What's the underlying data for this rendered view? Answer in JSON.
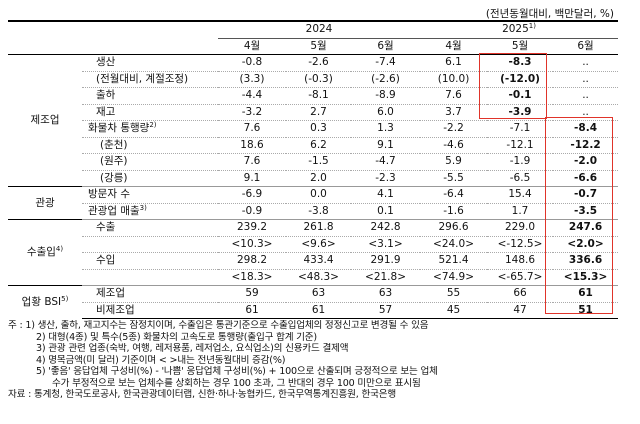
{
  "unit": "(전년동월대비, 백만달러, %)",
  "years": {
    "y2024": "2024",
    "y2025": "2025",
    "y2025_sup": "1)"
  },
  "months": [
    "4월",
    "5월",
    "6월",
    "4월",
    "5월",
    "6월"
  ],
  "rows": {
    "r1": {
      "label": "생산",
      "v": [
        "-0.8",
        "-2.6",
        "-7.4",
        "6.1",
        "-8.3",
        ".."
      ]
    },
    "r2": {
      "label": "(전월대비, 계절조정)",
      "v": [
        "(3.3)",
        "(-0.3)",
        "(-2.6)",
        "(10.0)",
        "(-12.0)",
        ".."
      ]
    },
    "r3": {
      "label": "출하",
      "v": [
        "-4.4",
        "-8.1",
        "-8.9",
        "7.6",
        "-0.1",
        ".."
      ]
    },
    "r4": {
      "label": "재고",
      "v": [
        "-3.2",
        "2.7",
        "6.0",
        "3.7",
        "-3.9",
        ".."
      ]
    },
    "r5": {
      "label": "화물차 통행량",
      "sup": "2)",
      "v": [
        "7.6",
        "0.3",
        "1.3",
        "-2.2",
        "-7.1",
        "-8.4"
      ]
    },
    "r6": {
      "label": "(춘천)",
      "v": [
        "18.6",
        "6.2",
        "9.1",
        "-4.6",
        "-12.1",
        "-12.2"
      ]
    },
    "r7": {
      "label": "(원주)",
      "v": [
        "7.6",
        "-1.5",
        "-4.7",
        "5.9",
        "-1.9",
        "-2.0"
      ]
    },
    "r8": {
      "label": "(강릉)",
      "v": [
        "9.1",
        "2.0",
        "-2.3",
        "-5.5",
        "-6.5",
        "-6.6"
      ]
    },
    "r9": {
      "label": "방문자 수",
      "v": [
        "-6.9",
        "0.0",
        "4.1",
        "-6.4",
        "15.4",
        "-0.7"
      ]
    },
    "r10": {
      "label": "관광업 매출",
      "sup": "3)",
      "v": [
        "-0.9",
        "-3.8",
        "0.1",
        "-1.6",
        "1.7",
        "-3.5"
      ]
    },
    "r11": {
      "label": "수출",
      "v": [
        "239.2",
        "261.8",
        "242.8",
        "296.6",
        "229.0",
        "247.6"
      ]
    },
    "r12": {
      "label": "",
      "v": [
        "<10.3>",
        "<9.6>",
        "<3.1>",
        "<24.0>",
        "<-12.5>",
        "<2.0>"
      ]
    },
    "r13": {
      "label": "수입",
      "v": [
        "298.2",
        "433.4",
        "291.9",
        "521.4",
        "148.6",
        "336.6"
      ]
    },
    "r14": {
      "label": "",
      "v": [
        "<18.3>",
        "<48.3>",
        "<21.8>",
        "<74.9>",
        "<-65.7>",
        "<15.3>"
      ]
    },
    "r15": {
      "label": "제조업",
      "v": [
        "59",
        "63",
        "63",
        "55",
        "66",
        "61"
      ]
    },
    "r16": {
      "label": "비제조업",
      "v": [
        "61",
        "61",
        "57",
        "45",
        "47",
        "51"
      ]
    }
  },
  "categories": {
    "manufacturing": "제조업",
    "tourism": "관광",
    "trade": "수출입",
    "trade_sup": "4)",
    "bsi": "업황 BSI",
    "bsi_sup": "5)"
  },
  "notes": [
    "주 : 1) 생산, 출하, 재고지수는 잠정치이며, 수출입은 통관기준으로 수출입업체의 정정신고로 변경될 수 있음",
    "2) 대형(4종) 및 특수(5종) 화물차의 고속도로 통행량(출입구 합계 기준)",
    "3) 관광 관련 업종(숙박, 여행, 레저용품, 레저업소, 요식업소)의 신용카드 결제액",
    "4) 명목금액(미 달러) 기준이며 < >내는 전년동월대비 증감(%)",
    "5) '좋음' 응답업체 구성비(%) - '나쁨' 응답업체 구성비(%) + 100으로 산출되며 긍정적으로 보는 업체",
    "수가 부정적으로 보는 업체수를 상회하는 경우 100 초과, 그 반대의 경우 100 미만으로 표시됨",
    "자료 : 통계청, 한국도로공사, 한국관광데이터랩, 신한·하나·농협카드, 한국무역통계진흥원, 한국은행"
  ]
}
